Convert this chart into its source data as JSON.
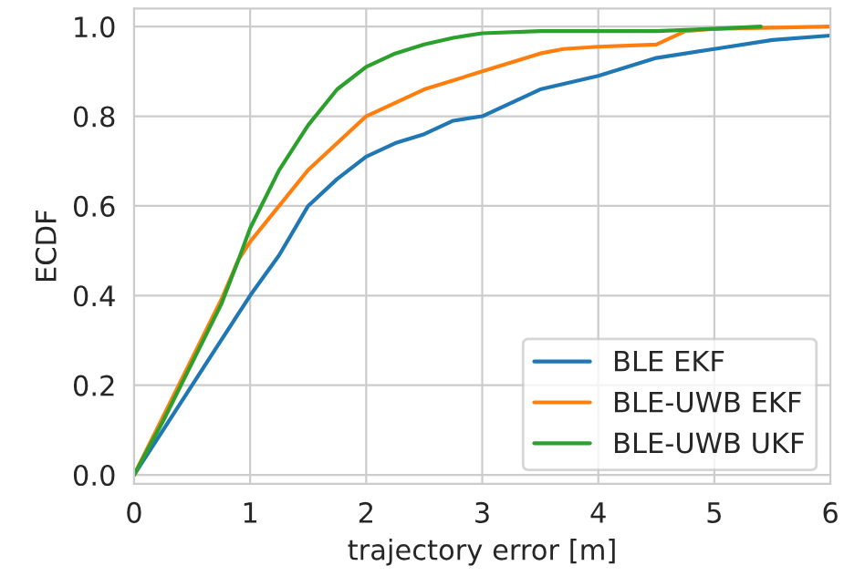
{
  "chart_data": {
    "type": "line",
    "xlabel": "trajectory error [m]",
    "ylabel": "ECDF",
    "xlim": [
      0,
      6
    ],
    "xticks": [
      0,
      1,
      2,
      3,
      4,
      5,
      6
    ],
    "ylim": [
      -0.02,
      1.04
    ],
    "yticks": [
      {
        "value": 0,
        "label": "0.0"
      },
      {
        "value": 0.2,
        "label": "0.2"
      },
      {
        "value": 0.4,
        "label": "0.4"
      },
      {
        "value": 0.6,
        "label": "0.6"
      },
      {
        "value": 0.8,
        "label": "0.8"
      },
      {
        "value": 1,
        "label": "1.0"
      }
    ],
    "grid": true,
    "legend": "bottom right",
    "marker": "none",
    "line_style": "solid",
    "series": [
      {
        "name": "BLE EKF",
        "color": "#1f77b4",
        "x": [
          0,
          0.25,
          0.5,
          0.75,
          1,
          1.25,
          1.5,
          1.75,
          2,
          2.25,
          2.5,
          2.75,
          3,
          3.25,
          3.5,
          4,
          4.5,
          5,
          5.5,
          6
        ],
        "values": [
          0,
          0.1,
          0.2,
          0.3,
          0.4,
          0.49,
          0.6,
          0.66,
          0.71,
          0.74,
          0.76,
          0.79,
          0.8,
          0.83,
          0.86,
          0.89,
          0.93,
          0.95,
          0.97,
          0.98
        ]
      },
      {
        "name": "BLE-UWB EKF",
        "color": "#ff7f0e",
        "x": [
          0,
          0.25,
          0.5,
          0.75,
          0.9,
          1,
          1.25,
          1.5,
          1.75,
          2,
          2.25,
          2.5,
          2.75,
          3,
          3.25,
          3.5,
          3.7,
          4,
          4.5,
          4.75,
          5,
          6
        ],
        "values": [
          0,
          0.13,
          0.26,
          0.39,
          0.48,
          0.52,
          0.6,
          0.68,
          0.74,
          0.8,
          0.83,
          0.86,
          0.88,
          0.9,
          0.92,
          0.94,
          0.95,
          0.955,
          0.96,
          0.99,
          0.995,
          1.0
        ]
      },
      {
        "name": "BLE-UWB UKF",
        "color": "#2ca02c",
        "x": [
          0,
          0.25,
          0.5,
          0.75,
          0.9,
          1,
          1.25,
          1.5,
          1.75,
          2,
          2.25,
          2.5,
          2.75,
          3,
          3.5,
          4,
          4.5,
          5,
          5.4
        ],
        "values": [
          0,
          0.12,
          0.25,
          0.38,
          0.48,
          0.55,
          0.68,
          0.78,
          0.86,
          0.91,
          0.94,
          0.96,
          0.975,
          0.985,
          0.99,
          0.99,
          0.99,
          0.995,
          1.0
        ]
      }
    ]
  }
}
